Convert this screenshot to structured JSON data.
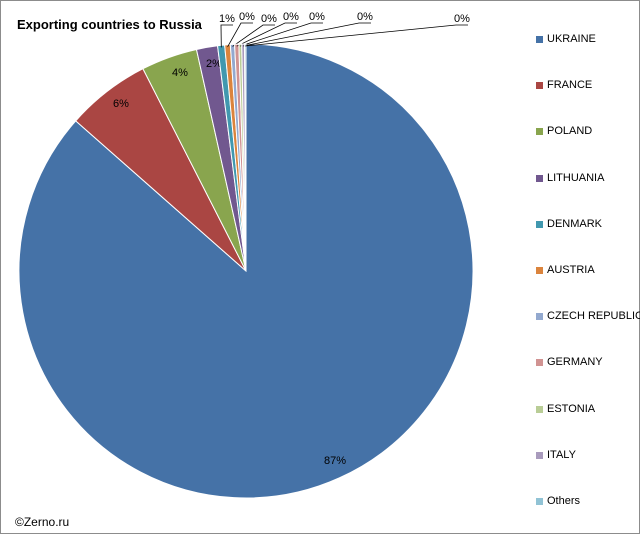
{
  "credit": "©Zerno.ru",
  "chart_data": {
    "type": "pie",
    "title": "Exporting countries to Russia",
    "legend_position": "right",
    "slices": [
      {
        "name": "UKRAINE",
        "value": 86.5,
        "label": "87%",
        "color": "#4572a7"
      },
      {
        "name": "FRANCE",
        "value": 6.0,
        "label": "6%",
        "color": "#aa4643"
      },
      {
        "name": "POLAND",
        "value": 4.0,
        "label": "4%",
        "color": "#89a54e"
      },
      {
        "name": "LITHUANIA",
        "value": 1.5,
        "label": "2%",
        "color": "#71588f"
      },
      {
        "name": "DENMARK",
        "value": 0.5,
        "label": "1%",
        "color": "#4198af"
      },
      {
        "name": "AUSTRIA",
        "value": 0.4,
        "label": "0%",
        "color": "#db843d"
      },
      {
        "name": "CZECH REPUBLIC",
        "value": 0.3,
        "label": "0%",
        "color": "#93a9cf"
      },
      {
        "name": "GERMANY",
        "value": 0.3,
        "label": "0%",
        "color": "#d19392"
      },
      {
        "name": "ESTONIA",
        "value": 0.2,
        "label": "0%",
        "color": "#b9cd96"
      },
      {
        "name": "ITALY",
        "value": 0.2,
        "label": "0%",
        "color": "#a99bbd"
      },
      {
        "name": "Others",
        "value": 0.1,
        "label": "0%",
        "color": "#91c3d5"
      }
    ]
  }
}
